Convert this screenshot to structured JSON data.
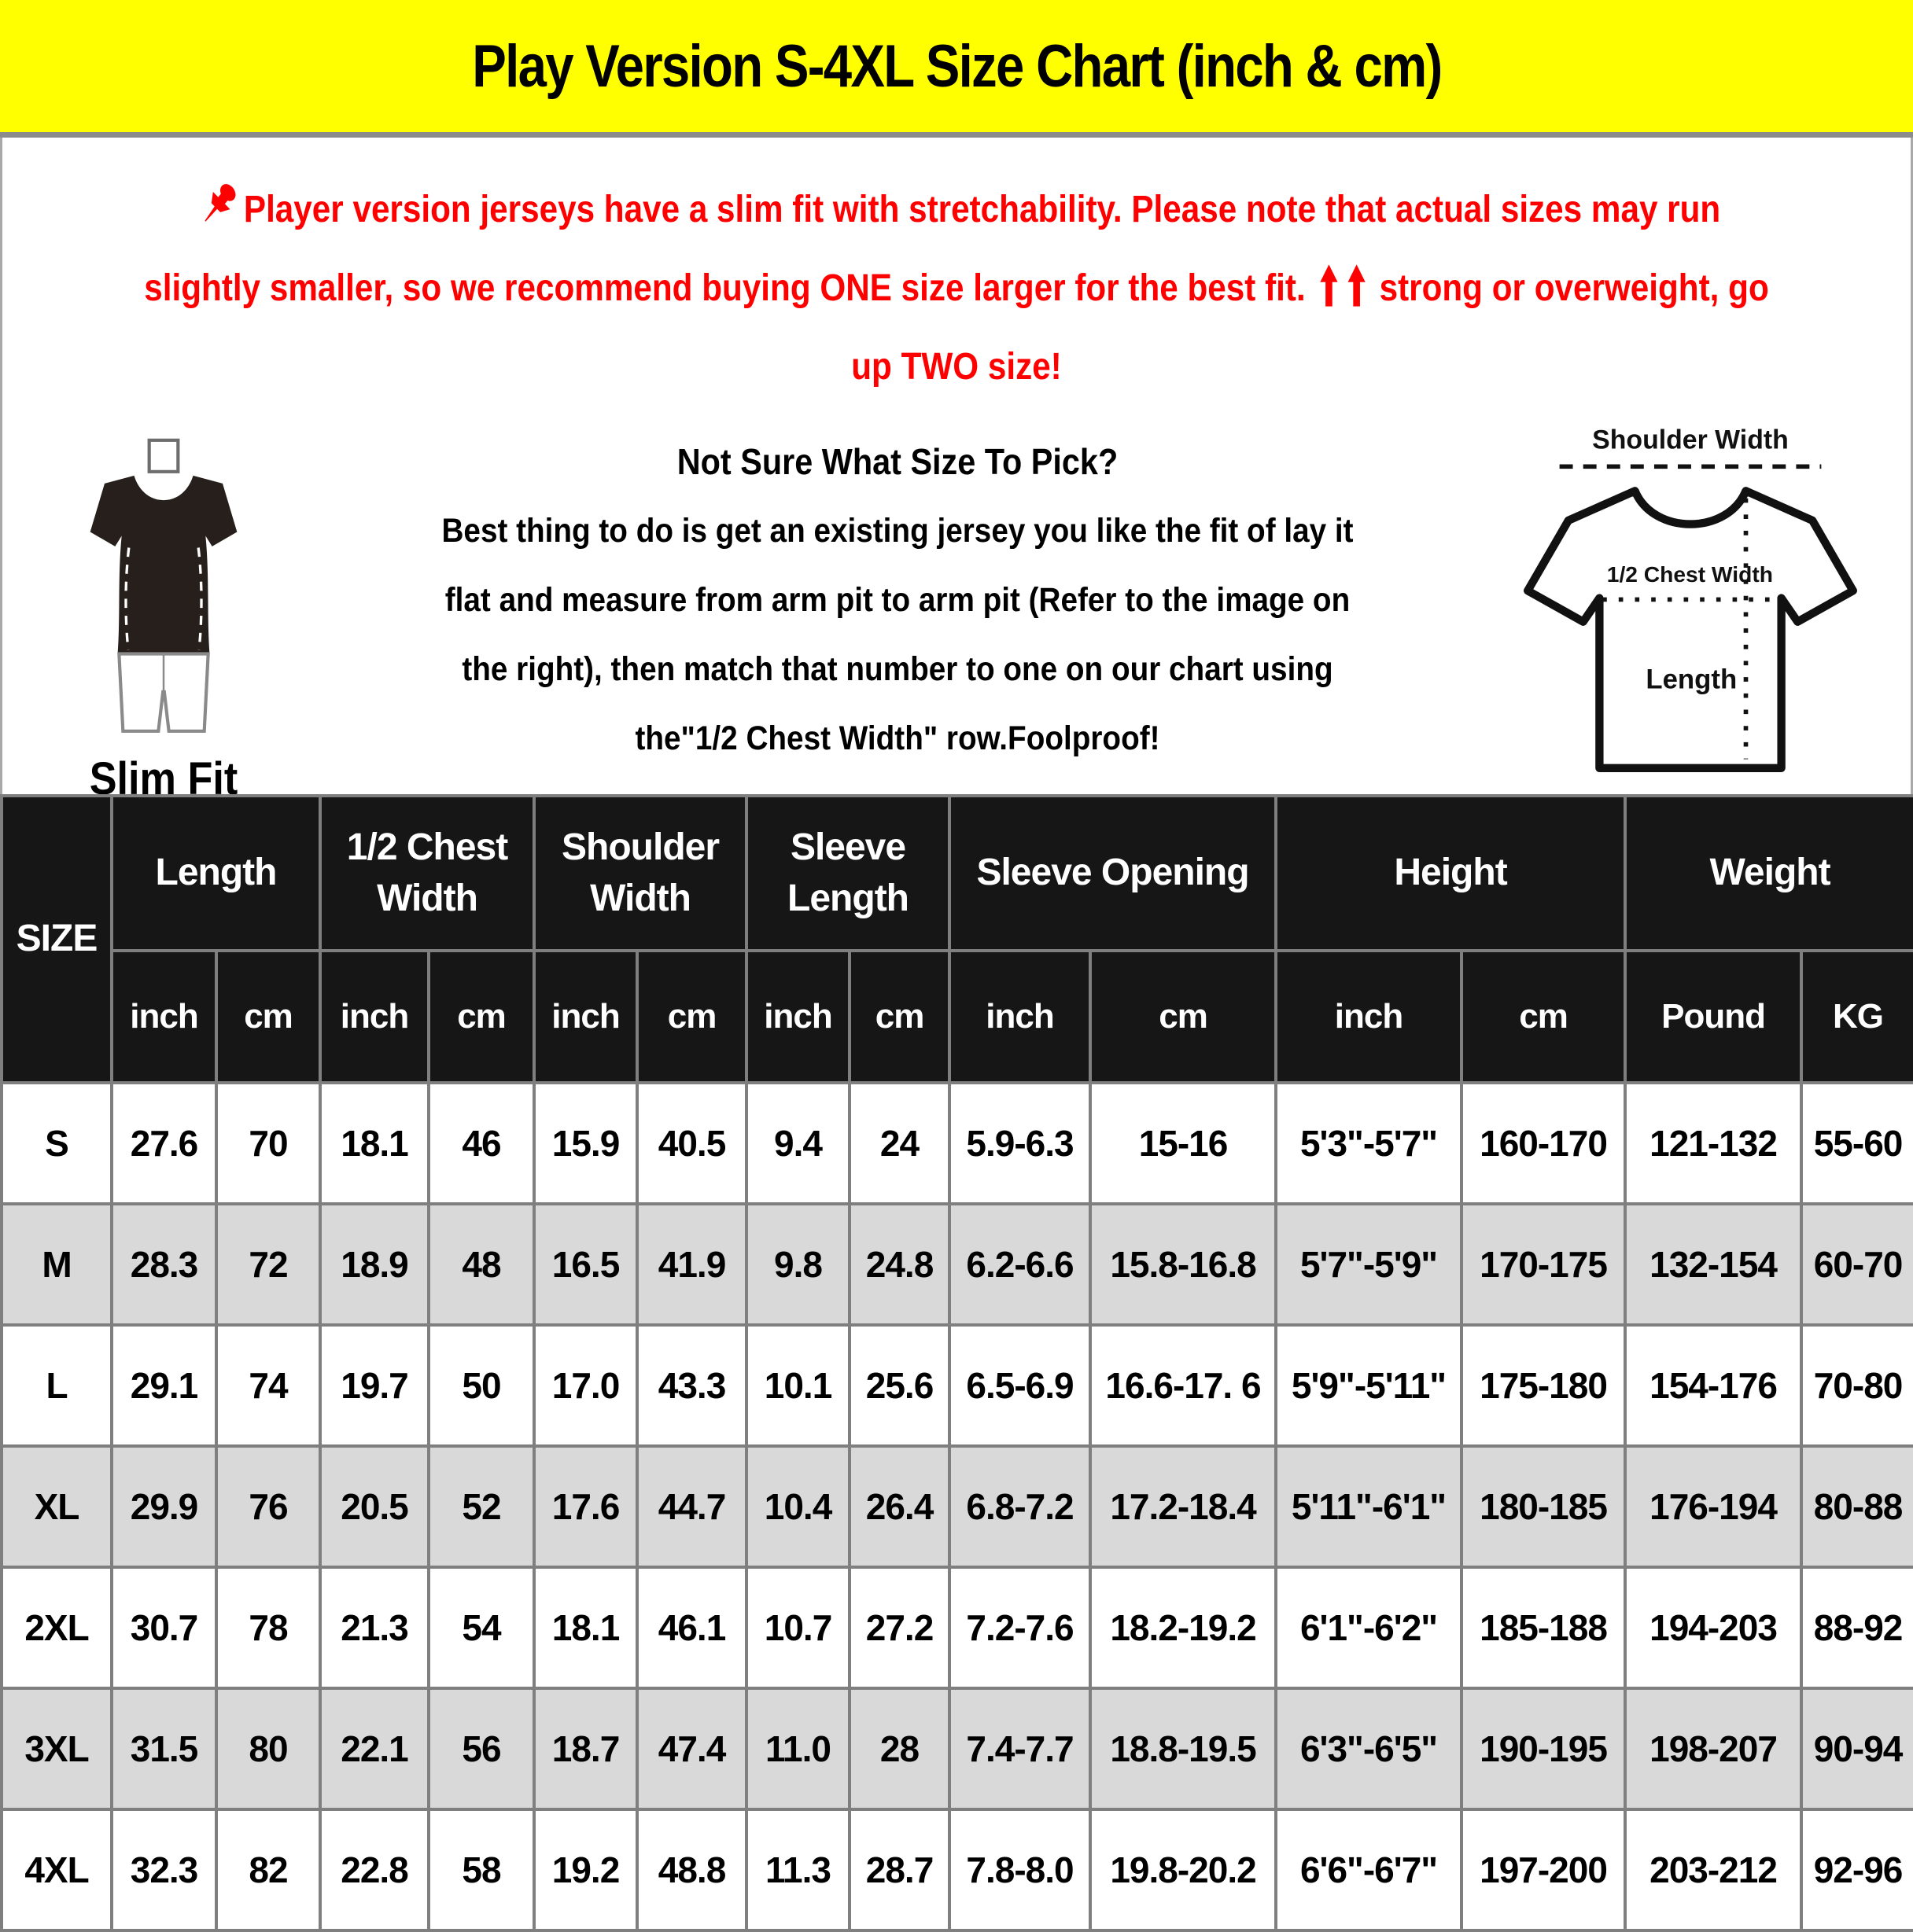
{
  "title": "Play Version S-4XL Size Chart (inch & cm)",
  "colors": {
    "banner_bg": "#ffff00",
    "warning_text": "#ff0000",
    "table_header_bg": "#161616",
    "row_alt_bg": "#d9d9d9",
    "grid_border": "#7f7f7f"
  },
  "warning": {
    "line1": "Player version jerseys have a slim fit with stretchability. Please note that actual sizes may run",
    "line2a": "slightly smaller, so we recommend buying ONE size larger for the best fit.",
    "line2b": "strong or overweight, go",
    "line3": "up TWO size!"
  },
  "slim_fit": {
    "label": "Slim Fit"
  },
  "instructions": {
    "title": "Not Sure What Size To Pick?",
    "lines": [
      "Best thing to do is get an existing jersey you like the fit of lay it",
      "flat and measure from arm pit to arm pit (Refer to the image on",
      "the right), then match that number to one on our chart using",
      "the\"1/2 Chest Width\" row.Foolproof!"
    ]
  },
  "diagram": {
    "shoulder_label": "Shoulder Width",
    "chest_label": "1/2 Chest Width",
    "length_label": "Length"
  },
  "table": {
    "size_header": "SIZE",
    "groups": [
      "Length",
      "1/2 Chest Width",
      "Shoulder Width",
      "Sleeve Length",
      "Sleeve Opening",
      "Height",
      "Weight"
    ],
    "sub_headers": [
      "inch",
      "cm",
      "inch",
      "cm",
      "inch",
      "cm",
      "inch",
      "cm",
      "inch",
      "cm",
      "inch",
      "cm",
      "Pound",
      "KG"
    ],
    "rows": [
      {
        "size": "S",
        "values": [
          "27.6",
          "70",
          "18.1",
          "46",
          "15.9",
          "40.5",
          "9.4",
          "24",
          "5.9-6.3",
          "15-16",
          "5'3\"-5'7\"",
          "160-170",
          "121-132",
          "55-60"
        ]
      },
      {
        "size": "M",
        "values": [
          "28.3",
          "72",
          "18.9",
          "48",
          "16.5",
          "41.9",
          "9.8",
          "24.8",
          "6.2-6.6",
          "15.8-16.8",
          "5'7\"-5'9\"",
          "170-175",
          "132-154",
          "60-70"
        ]
      },
      {
        "size": "L",
        "values": [
          "29.1",
          "74",
          "19.7",
          "50",
          "17.0",
          "43.3",
          "10.1",
          "25.6",
          "6.5-6.9",
          "16.6-17. 6",
          "5'9\"-5'11\"",
          "175-180",
          "154-176",
          "70-80"
        ]
      },
      {
        "size": "XL",
        "values": [
          "29.9",
          "76",
          "20.5",
          "52",
          "17.6",
          "44.7",
          "10.4",
          "26.4",
          "6.8-7.2",
          "17.2-18.4",
          "5'11\"-6'1\"",
          "180-185",
          "176-194",
          "80-88"
        ]
      },
      {
        "size": "2XL",
        "values": [
          "30.7",
          "78",
          "21.3",
          "54",
          "18.1",
          "46.1",
          "10.7",
          "27.2",
          "7.2-7.6",
          "18.2-19.2",
          "6'1\"-6'2\"",
          "185-188",
          "194-203",
          "88-92"
        ]
      },
      {
        "size": "3XL",
        "values": [
          "31.5",
          "80",
          "22.1",
          "56",
          "18.7",
          "47.4",
          "11.0",
          "28",
          "7.4-7.7",
          "18.8-19.5",
          "6'3\"-6'5\"",
          "190-195",
          "198-207",
          "90-94"
        ]
      },
      {
        "size": "4XL",
        "values": [
          "32.3",
          "82",
          "22.8",
          "58",
          "19.2",
          "48.8",
          "11.3",
          "28.7",
          "7.8-8.0",
          "19.8-20.2",
          "6'6\"-6'7\"",
          "197-200",
          "203-212",
          "92-96"
        ]
      }
    ]
  }
}
